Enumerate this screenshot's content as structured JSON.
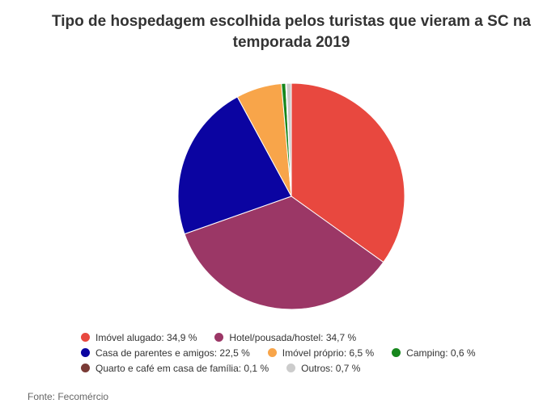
{
  "chart_data": {
    "type": "pie",
    "title": "Tipo de hospedagem escolhida pelos turistas que vieram a SC na temporada 2019",
    "unit": "%",
    "slices": [
      {
        "label": "Imóvel alugado",
        "value": 34.9,
        "legend_text": "Imóvel alugado: 34,9 %",
        "color": "#e8483f"
      },
      {
        "label": "Hotel/pousada/hostel",
        "value": 34.7,
        "legend_text": "Hotel/pousada/hostel: 34,7 %",
        "color": "#9b3766"
      },
      {
        "label": "Casa de parentes e amigos",
        "value": 22.5,
        "legend_text": "Casa de parentes e amigos: 22,5 %",
        "color": "#0b04a1"
      },
      {
        "label": "Imóvel próprio",
        "value": 6.5,
        "legend_text": "Imóvel próprio: 6,5 %",
        "color": "#f8a54a"
      },
      {
        "label": "Camping",
        "value": 0.6,
        "legend_text": "Camping: 0,6 %",
        "color": "#17871d"
      },
      {
        "label": "Quarto e café em casa de família",
        "value": 0.1,
        "legend_text": "Quarto e café em casa de família: 0,1 %",
        "color": "#7a3b36"
      },
      {
        "label": "Outros",
        "value": 0.7,
        "legend_text": "Outros: 0,7 %",
        "color": "#cccccc"
      }
    ],
    "legend_rows": [
      [
        0,
        1
      ],
      [
        2,
        3,
        4
      ],
      [
        5,
        6
      ]
    ]
  },
  "title_lines": [
    "Tipo de hospedagem escolhida pelos turistas que vieram a SC na",
    "temporada 2019"
  ],
  "source": "Fonte: Fecomércio"
}
